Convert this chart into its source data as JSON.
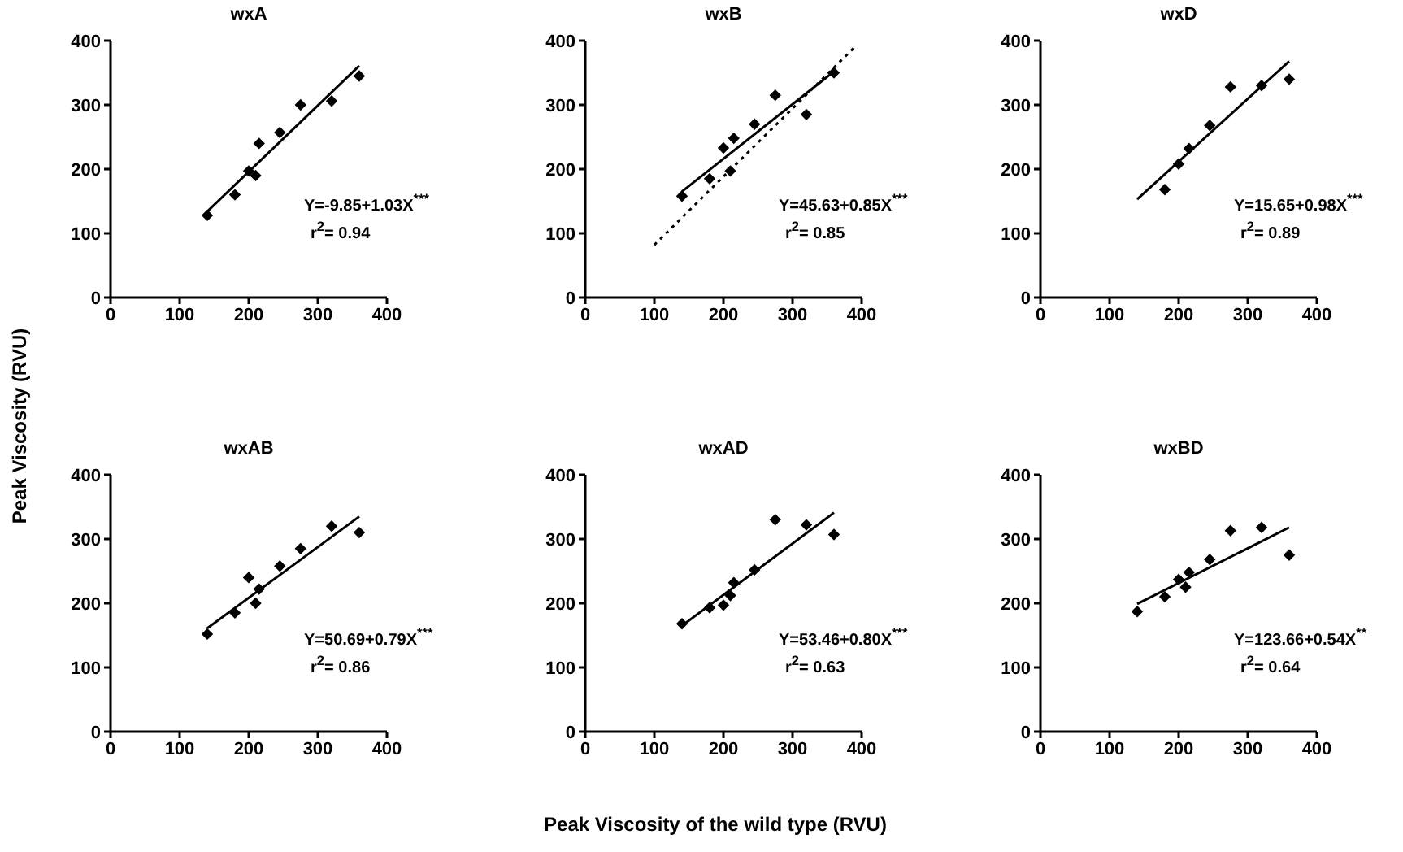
{
  "chart_data": [
    {
      "type": "scatter",
      "title": "wxA",
      "ylabel": "Peak Viscosity (RVU)",
      "xlim": [
        0,
        400
      ],
      "ylim": [
        0,
        400
      ],
      "xticks": [
        0,
        100,
        200,
        300,
        400
      ],
      "yticks": [
        0,
        100,
        200,
        300,
        400
      ],
      "marker": "diamond",
      "grid": false,
      "legend": false,
      "series": [
        {
          "type": "scatter",
          "color": "#000000",
          "x": [
            140,
            180,
            200,
            210,
            215,
            245,
            275,
            320,
            360
          ],
          "values": [
            128,
            160,
            197,
            190,
            240,
            257,
            300,
            306,
            345
          ]
        },
        {
          "type": "line",
          "color": "#000000",
          "marker": "none",
          "line_style": "solid",
          "x": [
            140,
            360
          ],
          "values": [
            134,
            361
          ]
        }
      ],
      "annotations": [
        "Y=-9.85+1.03X$^{***}$",
        "r$^{2}$= 0.94"
      ]
    },
    {
      "type": "scatter",
      "title": "wxB",
      "xlim": [
        0,
        400
      ],
      "ylim": [
        0,
        400
      ],
      "xticks": [
        0,
        100,
        200,
        300,
        400
      ],
      "yticks": [
        0,
        100,
        200,
        300,
        400
      ],
      "marker": "diamond",
      "grid": false,
      "legend": false,
      "series": [
        {
          "type": "scatter",
          "color": "#000000",
          "x": [
            140,
            180,
            200,
            210,
            215,
            245,
            275,
            320,
            360
          ],
          "values": [
            158,
            185,
            233,
            197,
            248,
            270,
            315,
            285,
            350
          ]
        },
        {
          "type": "line",
          "color": "#000000",
          "marker": "none",
          "line_style": "solid",
          "x": [
            140,
            360
          ],
          "values": [
            165,
            352
          ]
        },
        {
          "type": "line",
          "color": "#000000",
          "marker": "none",
          "line_style": "dotted",
          "x": [
            100,
            390
          ],
          "values": [
            82,
            390
          ]
        }
      ],
      "annotations": [
        "Y=45.63+0.85X$^{***}$",
        "r$^{2}$= 0.85"
      ]
    },
    {
      "type": "scatter",
      "title": "wxD",
      "xlim": [
        0,
        400
      ],
      "ylim": [
        0,
        400
      ],
      "xticks": [
        0,
        100,
        200,
        300,
        400
      ],
      "yticks": [
        0,
        100,
        200,
        300,
        400
      ],
      "marker": "diamond",
      "grid": false,
      "legend": false,
      "series": [
        {
          "type": "scatter",
          "color": "#000000",
          "x": [
            180,
            200,
            210,
            215,
            245,
            275,
            320,
            360
          ],
          "values": [
            168,
            208,
            null,
            232,
            268,
            328,
            330,
            340
          ]
        },
        {
          "type": "line",
          "color": "#000000",
          "marker": "none",
          "line_style": "solid",
          "x": [
            140,
            360
          ],
          "values": [
            153,
            368
          ]
        }
      ],
      "annotations": [
        "Y=15.65+0.98X$^{***}$",
        "r$^{2}$= 0.89"
      ]
    },
    {
      "type": "scatter",
      "title": "wxAB",
      "xlim": [
        0,
        400
      ],
      "ylim": [
        0,
        400
      ],
      "xticks": [
        0,
        100,
        200,
        300,
        400
      ],
      "yticks": [
        0,
        100,
        200,
        300,
        400
      ],
      "marker": "diamond",
      "grid": false,
      "legend": false,
      "series": [
        {
          "type": "scatter",
          "color": "#000000",
          "x": [
            140,
            180,
            200,
            210,
            215,
            245,
            275,
            320,
            360
          ],
          "values": [
            152,
            185,
            240,
            200,
            222,
            258,
            285,
            320,
            310
          ]
        },
        {
          "type": "line",
          "color": "#000000",
          "marker": "none",
          "line_style": "solid",
          "x": [
            140,
            360
          ],
          "values": [
            161,
            335
          ]
        }
      ],
      "annotations": [
        "Y=50.69+0.79X$^{***}$",
        "r$^{2}$= 0.86"
      ]
    },
    {
      "type": "scatter",
      "title": "wxAD",
      "xlabel": "Peak Viscosity of the wild type (RVU)",
      "xlim": [
        0,
        400
      ],
      "ylim": [
        0,
        400
      ],
      "xticks": [
        0,
        100,
        200,
        300,
        400
      ],
      "yticks": [
        0,
        100,
        200,
        300,
        400
      ],
      "marker": "diamond",
      "grid": false,
      "legend": false,
      "series": [
        {
          "type": "scatter",
          "color": "#000000",
          "x": [
            140,
            180,
            200,
            210,
            215,
            245,
            275,
            320,
            360
          ],
          "values": [
            168,
            193,
            197,
            212,
            232,
            252,
            330,
            322,
            307
          ]
        },
        {
          "type": "line",
          "color": "#000000",
          "marker": "none",
          "line_style": "solid",
          "x": [
            140,
            360
          ],
          "values": [
            165,
            341
          ]
        }
      ],
      "annotations": [
        "Y=53.46+0.80X$^{***}$",
        "r$^{2}$= 0.63"
      ]
    },
    {
      "type": "scatter",
      "title": "wxBD",
      "xlim": [
        0,
        400
      ],
      "ylim": [
        0,
        400
      ],
      "xticks": [
        0,
        100,
        200,
        300,
        400
      ],
      "yticks": [
        0,
        100,
        200,
        300,
        400
      ],
      "marker": "diamond",
      "grid": false,
      "legend": false,
      "series": [
        {
          "type": "scatter",
          "color": "#000000",
          "x": [
            140,
            180,
            200,
            210,
            215,
            245,
            275,
            320,
            360
          ],
          "values": [
            187,
            210,
            237,
            225,
            248,
            268,
            313,
            318,
            275
          ]
        },
        {
          "type": "line",
          "color": "#000000",
          "marker": "none",
          "line_style": "solid",
          "x": [
            140,
            360
          ],
          "values": [
            199,
            318
          ]
        }
      ],
      "annotations": [
        "Y=123.66+0.54X$^{**}$",
        "r$^{2}$= 0.64"
      ]
    }
  ]
}
